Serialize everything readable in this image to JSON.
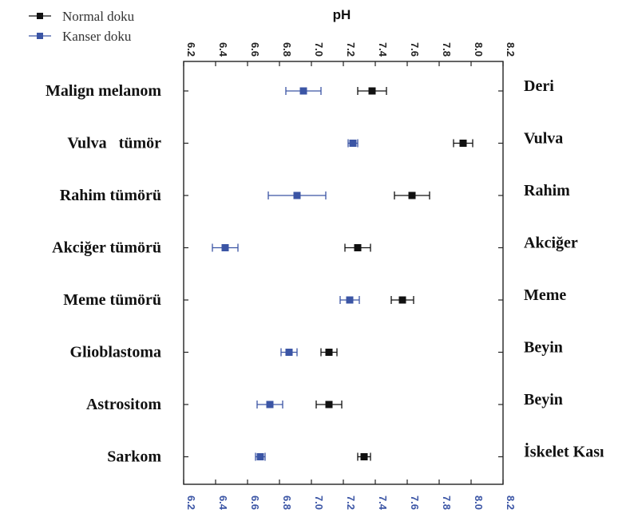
{
  "chart_data": {
    "type": "scatter",
    "title": "pH",
    "xlim": [
      6.2,
      8.2
    ],
    "x_ticks": [
      "6.2",
      "6.4",
      "6.6",
      "6.8",
      "7.0",
      "7.2",
      "7.4",
      "7.6",
      "7.8",
      "8.0",
      "8.2"
    ],
    "grid": false,
    "legend_position": "top-left",
    "categories": [
      "Malign melanom",
      "Vulva   tümör",
      "Rahim tümörü",
      "Akciğer tümörü",
      "Meme tümörü",
      "Glioblastoma",
      "Astrositom",
      "Sarkom"
    ],
    "tissues": [
      "Deri",
      "Vulva",
      "Rahim",
      "Akciğer",
      "Meme",
      "Beyin",
      "Beyin",
      "İskelet Kası"
    ],
    "series": [
      {
        "name": "Normal doku",
        "color": "#111111",
        "values": [
          7.38,
          7.95,
          7.63,
          7.29,
          7.57,
          7.11,
          7.11,
          7.33
        ],
        "errors": [
          0.09,
          0.06,
          0.11,
          0.08,
          0.07,
          0.05,
          0.08,
          0.04
        ]
      },
      {
        "name": "Kanser doku",
        "color": "#3b55a5",
        "values": [
          6.95,
          7.26,
          6.91,
          6.46,
          7.24,
          6.86,
          6.74,
          6.68
        ],
        "errors": [
          0.11,
          0.03,
          0.18,
          0.08,
          0.06,
          0.05,
          0.08,
          0.03
        ]
      }
    ]
  }
}
